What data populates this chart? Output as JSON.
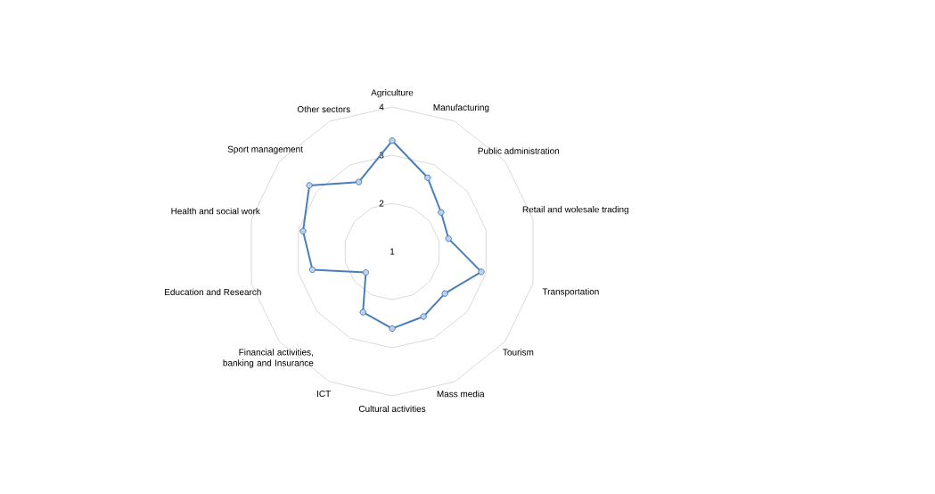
{
  "chart_data": {
    "type": "radar",
    "categories": [
      "Agriculture",
      "Manufacturing",
      "Public administration",
      "Retail and wolesale trading",
      "Transportation",
      "Tourism",
      "Mass media",
      "Cultural activities",
      "ICT",
      "Financial activities, banking and Insurance",
      "Education and Research",
      "Health and social work",
      "Sport management",
      "Other sectors"
    ],
    "series": [
      {
        "color": "#4a7ebb",
        "values": [
          3.3,
          2.7,
          2.3,
          2.2,
          2.9,
          2.4,
          2.5,
          2.6,
          2.4,
          1.7,
          2.7,
          2.9,
          3.2,
          2.6
        ]
      }
    ],
    "ylim": [
      1,
      4
    ],
    "yticks": [
      1,
      2,
      3,
      4
    ],
    "grid": true,
    "marker": "circle"
  }
}
